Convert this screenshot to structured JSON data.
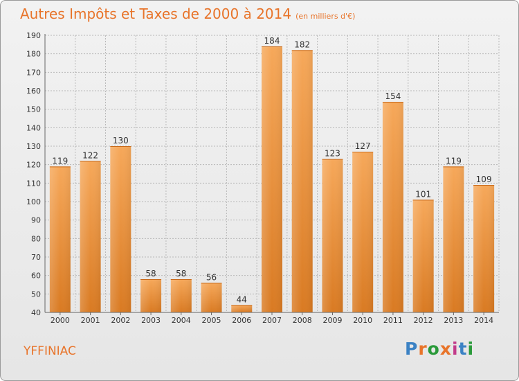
{
  "header": {
    "title": "Autres Impôts et Taxes de 2000 à 2014",
    "unit": "(en milliers d'€)"
  },
  "footer": {
    "city": "YFFINIAC",
    "brand": "Proxiti",
    "brand_colors": [
      "#3b82c4",
      "#e8742a",
      "#2a9a3a",
      "#e8742a",
      "#c23b8a",
      "#3b82c4",
      "#2a9a3a"
    ]
  },
  "colors": {
    "accent": "#e8742a",
    "bar_light": "#f6a85a",
    "bar_dark": "#d97a22",
    "grid": "#b8b8b8"
  },
  "chart_data": {
    "type": "bar",
    "title": "Autres Impôts et Taxes de 2000 à 2014",
    "subtitle": "(en milliers d'€)",
    "categories": [
      "2000",
      "2001",
      "2002",
      "2003",
      "2004",
      "2005",
      "2006",
      "2007",
      "2008",
      "2009",
      "2010",
      "2011",
      "2012",
      "2013",
      "2014"
    ],
    "values": [
      119,
      122,
      130,
      58,
      58,
      56,
      44,
      184,
      182,
      123,
      127,
      154,
      101,
      119,
      109
    ],
    "ylim": [
      40,
      190
    ],
    "yticks": [
      40,
      50,
      60,
      70,
      80,
      90,
      100,
      110,
      120,
      130,
      140,
      150,
      160,
      170,
      180,
      190
    ],
    "grid": true,
    "data_labels": true
  }
}
